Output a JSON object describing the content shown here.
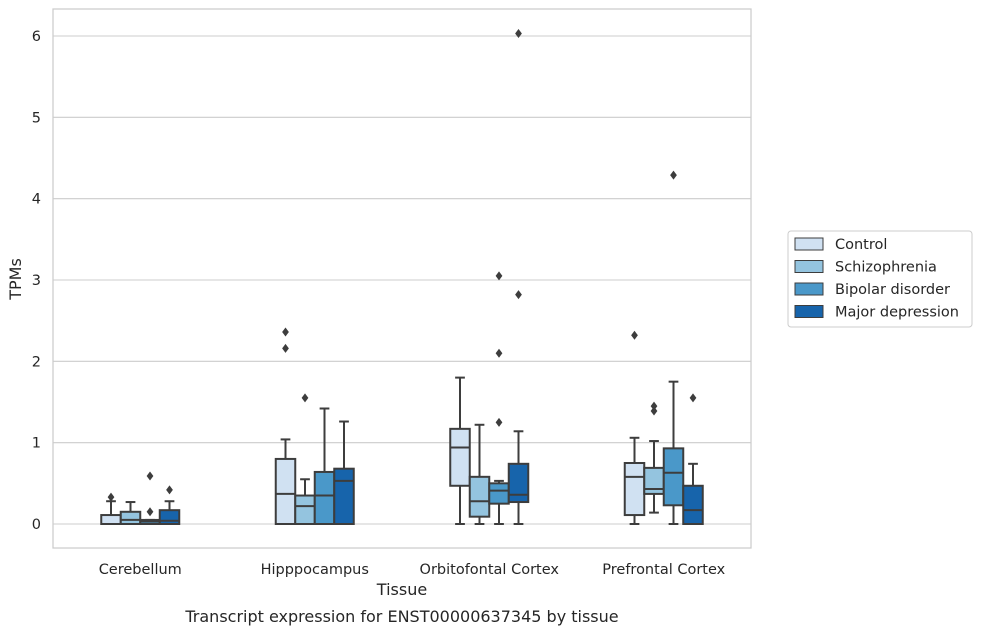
{
  "caption": "Transcript expression for ENST00000637345 by tissue",
  "chart_data": {
    "type": "box",
    "xlabel": "Tissue",
    "ylabel": "TPMs",
    "ylim": [
      -0.3,
      6.35
    ],
    "yticks": [
      0,
      1,
      2,
      3,
      4,
      5,
      6
    ],
    "grid": "horizontal",
    "legend_position": "right",
    "categories": [
      "Cerebellum",
      "Hipppocampus",
      "Orbitofontal Cortex",
      "Prefrontal Cortex"
    ],
    "series": [
      {
        "name": "Control",
        "color": "#d0e1f2",
        "boxes": [
          {
            "whislo": 0,
            "q1": 0,
            "med": 0,
            "q3": 0.11,
            "whishi": 0.28,
            "fliers": [
              0.33
            ]
          },
          {
            "whislo": 0,
            "q1": 0,
            "med": 0.37,
            "q3": 0.8,
            "whishi": 1.04,
            "fliers": [
              2.16,
              2.36
            ]
          },
          {
            "whislo": 0,
            "q1": 0.47,
            "med": 0.94,
            "q3": 1.17,
            "whishi": 1.8,
            "fliers": []
          },
          {
            "whislo": 0,
            "q1": 0.11,
            "med": 0.58,
            "q3": 0.75,
            "whishi": 1.06,
            "fliers": [
              2.32
            ]
          }
        ]
      },
      {
        "name": "Schizophrenia",
        "color": "#94c4df",
        "boxes": [
          {
            "whislo": 0,
            "q1": 0,
            "med": 0.05,
            "q3": 0.15,
            "whishi": 0.27,
            "fliers": []
          },
          {
            "whislo": 0,
            "q1": 0,
            "med": 0.22,
            "q3": 0.35,
            "whishi": 0.55,
            "fliers": [
              1.55
            ]
          },
          {
            "whislo": 0,
            "q1": 0.09,
            "med": 0.28,
            "q3": 0.58,
            "whishi": 1.22,
            "fliers": []
          },
          {
            "whislo": 0.14,
            "q1": 0.37,
            "med": 0.43,
            "q3": 0.69,
            "whishi": 1.02,
            "fliers": [
              1.39,
              1.45
            ]
          }
        ]
      },
      {
        "name": "Bipolar disorder",
        "color": "#4a98c9",
        "boxes": [
          {
            "whislo": 0,
            "q1": 0,
            "med": 0.03,
            "q3": 0.05,
            "whishi": 0.05,
            "fliers": [
              0.15,
              0.59
            ]
          },
          {
            "whislo": 0,
            "q1": 0,
            "med": 0.35,
            "q3": 0.64,
            "whishi": 1.42,
            "fliers": []
          },
          {
            "whislo": 0,
            "q1": 0.25,
            "med": 0.41,
            "q3": 0.5,
            "whishi": 0.53,
            "fliers": [
              1.25,
              2.1,
              3.05
            ]
          },
          {
            "whislo": 0,
            "q1": 0.23,
            "med": 0.63,
            "q3": 0.93,
            "whishi": 1.75,
            "fliers": [
              4.29
            ]
          }
        ]
      },
      {
        "name": "Major depression",
        "color": "#1764ab",
        "boxes": [
          {
            "whislo": 0,
            "q1": 0,
            "med": 0.04,
            "q3": 0.17,
            "whishi": 0.28,
            "fliers": [
              0.42
            ]
          },
          {
            "whislo": 0,
            "q1": 0,
            "med": 0.53,
            "q3": 0.68,
            "whishi": 1.26,
            "fliers": []
          },
          {
            "whislo": 0,
            "q1": 0.27,
            "med": 0.36,
            "q3": 0.74,
            "whishi": 1.14,
            "fliers": [
              2.82,
              6.03
            ]
          },
          {
            "whislo": 0,
            "q1": 0,
            "med": 0.17,
            "q3": 0.47,
            "whishi": 0.74,
            "fliers": [
              1.55
            ]
          }
        ]
      }
    ]
  }
}
